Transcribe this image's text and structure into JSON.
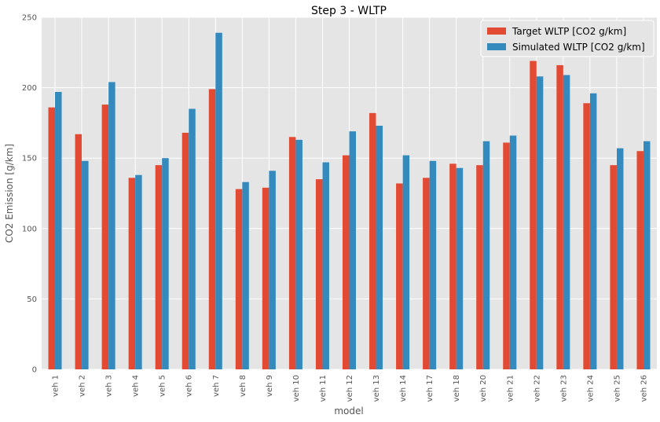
{
  "chart_data": {
    "type": "bar",
    "title": "Step 3 - WLTP",
    "xlabel": "model",
    "ylabel": "CO2 Emission [g/km]",
    "ylim": [
      0,
      250
    ],
    "yticks": [
      0,
      50,
      100,
      150,
      200,
      250
    ],
    "grid": true,
    "legend_position": "top-right",
    "categories": [
      "veh 1",
      "veh 2",
      "veh 3",
      "veh 4",
      "veh 5",
      "veh 6",
      "veh 7",
      "veh 8",
      "veh 9",
      "veh 10",
      "veh 11",
      "veh 12",
      "veh 13",
      "veh 14",
      "veh 17",
      "veh 18",
      "veh 20",
      "veh 21",
      "veh 22",
      "veh 23",
      "veh 24",
      "veh 25",
      "veh 26"
    ],
    "series": [
      {
        "name": "Target WLTP [CO2 g/km]",
        "color": "#e24a33",
        "values": [
          186,
          167,
          188,
          136,
          145,
          168,
          199,
          128,
          129,
          165,
          135,
          152,
          182,
          132,
          136,
          146,
          145,
          161,
          219,
          216,
          189,
          145,
          155
        ]
      },
      {
        "name": "Simulated WLTP [CO2 g/km]",
        "color": "#348abd",
        "values": [
          197,
          148,
          204,
          138,
          150,
          185,
          239,
          133,
          141,
          163,
          147,
          169,
          173,
          152,
          148,
          143,
          162,
          166,
          208,
          209,
          196,
          157,
          162
        ]
      }
    ]
  },
  "style": {
    "plot_background": "#e5e5e5",
    "grid_color": "#ffffff",
    "legend_background": "#e5e5e5"
  }
}
